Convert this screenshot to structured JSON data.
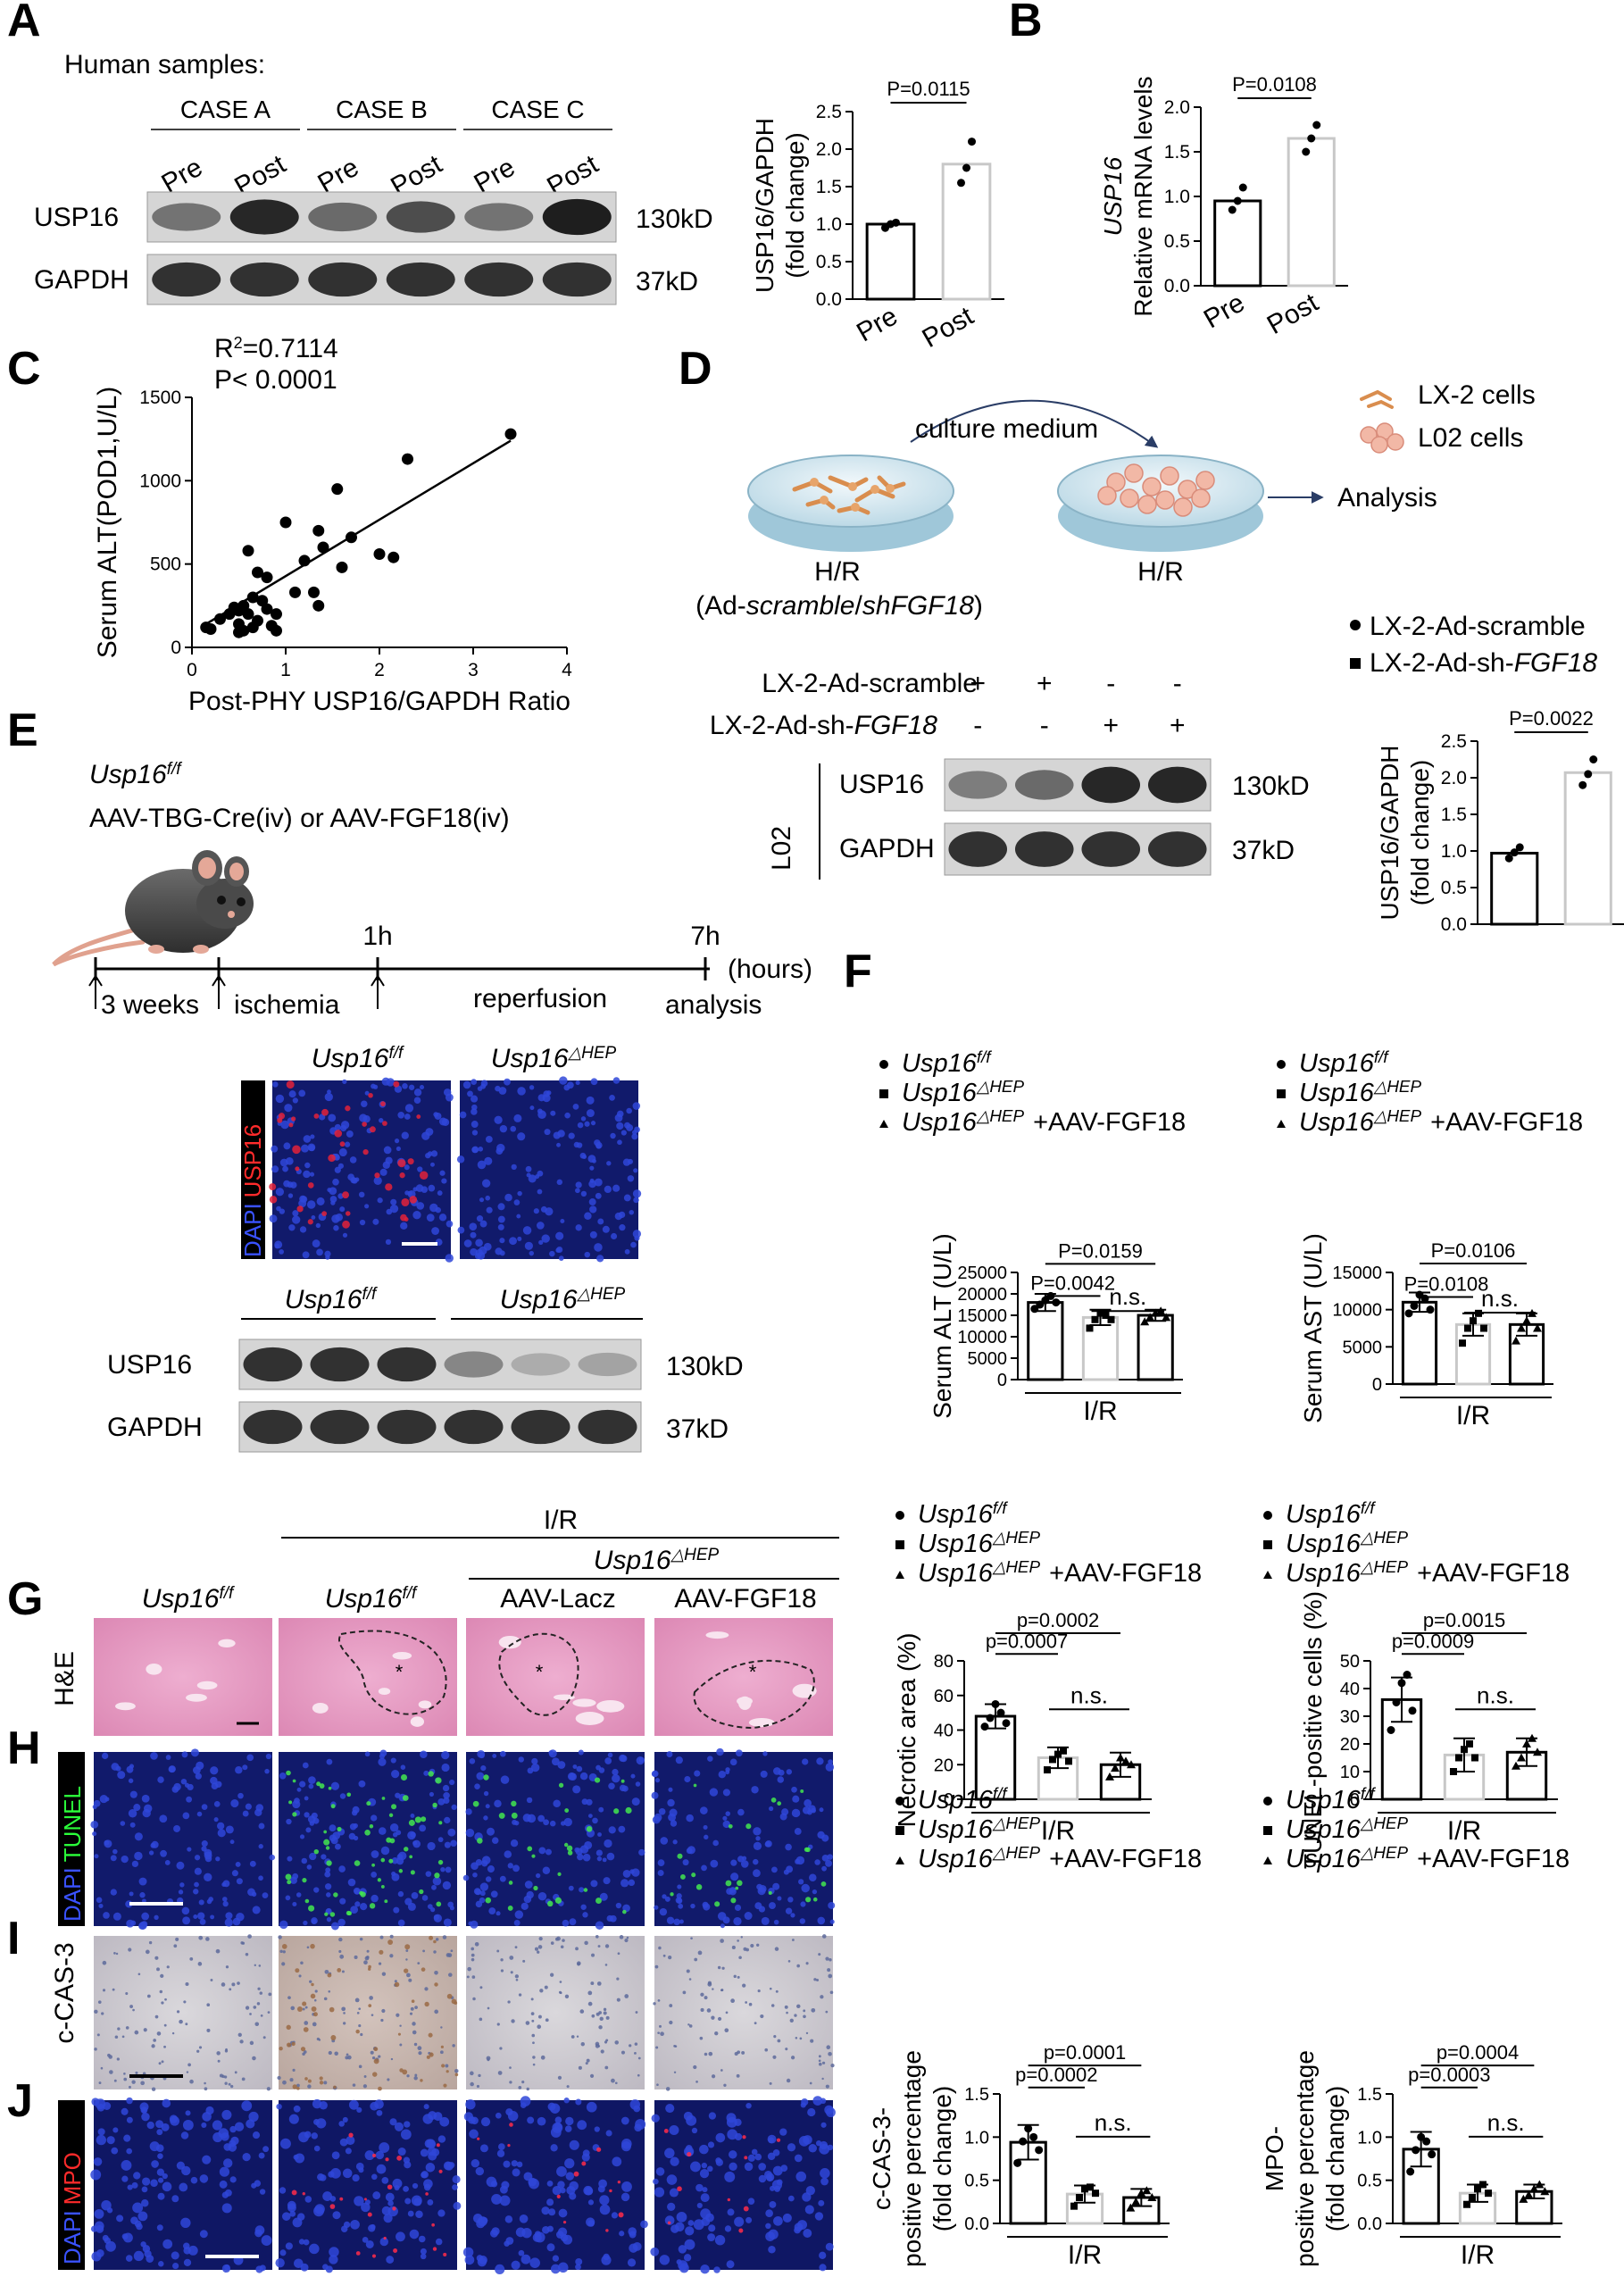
{
  "panels": {
    "A": {
      "letter": "A",
      "title": "Human samples:",
      "cases": [
        "CASE A",
        "CASE B",
        "CASE C"
      ],
      "lanes": [
        "Pre",
        "Post",
        "Pre",
        "Post",
        "Pre",
        "Post"
      ],
      "blots": [
        {
          "name": "USP16",
          "mw": "130kD",
          "intensity": [
            0.55,
            0.95,
            0.6,
            0.75,
            0.55,
            1.0
          ]
        },
        {
          "name": "GAPDH",
          "mw": "37kD",
          "intensity": [
            0.9,
            0.9,
            0.9,
            0.9,
            0.9,
            0.9
          ]
        }
      ]
    },
    "B": {
      "letter": "B"
    },
    "C": {
      "letter": "C",
      "r2_prefix": "R",
      "r2_sup": "2",
      "r2_value": "=0.7114",
      "p_text": "P< 0.0001"
    },
    "D": {
      "letter": "D",
      "culture_medium": "culture medium",
      "legend_lx2": "LX-2 cells",
      "legend_l02": "L02 cells",
      "analysis": "Analysis",
      "left_dish": "H/R",
      "left_dish_sub_prefix": "(Ad-",
      "left_dish_sub_scramble": "scramble",
      "left_dish_sub_slash": "/",
      "left_dish_sub_sh": "shFGF18",
      "left_dish_sub_suffix": ")",
      "right_dish": "H/R",
      "row1_label": "LX-2-Ad-scramble",
      "row1_signs": [
        "+",
        "+",
        "-",
        "-"
      ],
      "row2_label_prefix": "LX-2-Ad-sh-",
      "row2_label_it": "FGF18",
      "row2_signs": [
        "-",
        "-",
        "+",
        "+"
      ],
      "cell_line": "L02",
      "blots": [
        {
          "name": "USP16",
          "mw": "130kD",
          "intensity": [
            0.5,
            0.6,
            0.95,
            0.95
          ]
        },
        {
          "name": "GAPDH",
          "mw": "37kD",
          "intensity": [
            0.9,
            0.9,
            0.9,
            0.9
          ]
        }
      ],
      "legend1": "LX-2-Ad-scramble",
      "legend2_prefix": "LX-2-Ad-sh-",
      "legend2_it": "FGF18"
    },
    "E": {
      "letter": "E",
      "genotype": "Usp16",
      "genotype_sup": "f/f",
      "treatment": "AAV-TBG-Cre(iv) or AAV-FGF18(iv)",
      "t1": "1h",
      "t7": "7h",
      "hours": "(hours)",
      "weeks": "3 weeks",
      "ischemia": "ischemia",
      "reperfusion": "reperfusion",
      "analysis": "analysis",
      "if_group1": "Usp16",
      "if_group1_sup": "f/f",
      "if_group2": "Usp16",
      "if_group2_sup": "△HEP",
      "stain_dapi": "DAPI",
      "stain_usp16": "USP16",
      "wb_group1": "Usp16",
      "wb_group1_sup": "f/f",
      "wb_group2": "Usp16",
      "wb_group2_sup": "△HEP",
      "blots": [
        {
          "name": "USP16",
          "mw": "130kD",
          "intensity": [
            0.9,
            0.9,
            0.9,
            0.45,
            0.25,
            0.3
          ]
        },
        {
          "name": "GAPDH",
          "mw": "37kD",
          "intensity": [
            0.9,
            0.9,
            0.9,
            0.9,
            0.9,
            0.9
          ]
        }
      ]
    },
    "F": {
      "letter": "F"
    },
    "G": {
      "letter": "G",
      "ir": "I/R",
      "group_ctrl": "Usp16",
      "group_ctrl_sup": "f/f",
      "group_ir": "Usp16",
      "group_ir_sup": "f/f",
      "group_hep": "Usp16",
      "group_hep_sup": "△HEP",
      "aav_lacz": "AAV-Lacz",
      "aav_fgf18": "AAV-FGF18",
      "stain": "H&E"
    },
    "H": {
      "letter": "H",
      "stain_dapi": "DAPI",
      "stain_tunel": "TUNEL"
    },
    "I": {
      "letter": "I",
      "stain": "c-CAS-3"
    },
    "J": {
      "letter": "J",
      "stain_dapi": "DAPI",
      "stain_mpo": "MPO"
    }
  },
  "legends": {
    "ff": {
      "name": "Usp16",
      "sup": "f/f"
    },
    "hep": {
      "name": "Usp16",
      "sup": "△HEP"
    },
    "fgf": {
      "name": "Usp16",
      "sup": "△HEP",
      "suffix": "+AAV-FGF18"
    },
    "fgf_spaced": {
      "name": "Usp16",
      "sup": "△HEP",
      "suffix": "+AAV-FGF18"
    }
  },
  "chart_data": [
    {
      "id": "A_quant",
      "type": "bar",
      "categories": [
        "Pre",
        "Post"
      ],
      "values": [
        1.0,
        1.8
      ],
      "points": [
        [
          0.95,
          1.0,
          1.02
        ],
        [
          1.55,
          1.75,
          2.1
        ]
      ],
      "ylabel": "USP16/GAPDH",
      "ylabel2": "(fold change)",
      "ylim": [
        0,
        2.5
      ],
      "yticks": [
        "0.0",
        "0.5",
        "1.0",
        "1.5",
        "2.0",
        "2.5"
      ],
      "comparisons": [
        {
          "text": "P=0.0115"
        }
      ],
      "colors": [
        "#000000",
        "#c8c8c8"
      ]
    },
    {
      "id": "B_quant",
      "type": "bar",
      "categories": [
        "Pre",
        "Post"
      ],
      "values": [
        0.95,
        1.65
      ],
      "points": [
        [
          0.85,
          0.95,
          1.1
        ],
        [
          1.5,
          1.65,
          1.8
        ]
      ],
      "ylabel": "USP16",
      "ylabel2": "Relative mRNA levels",
      "ylim": [
        0,
        2.0
      ],
      "yticks": [
        "0.0",
        "0.5",
        "1.0",
        "1.5",
        "2.0"
      ],
      "comparisons": [
        {
          "text": "P=0.0108"
        }
      ],
      "colors": [
        "#000000",
        "#c8c8c8"
      ]
    },
    {
      "id": "C_scatter",
      "type": "scatter",
      "x": [
        0.15,
        0.2,
        0.3,
        0.4,
        0.45,
        0.5,
        0.55,
        0.6,
        0.5,
        0.5,
        0.7,
        0.65,
        0.8,
        0.6,
        0.7,
        0.75,
        0.85,
        0.9,
        1.0,
        1.1,
        0.55,
        0.65,
        0.8,
        0.9,
        1.2,
        1.3,
        1.35,
        1.4,
        1.35,
        1.55,
        1.6,
        1.7,
        2.0,
        2.15,
        2.3,
        3.4
      ],
      "y": [
        120,
        110,
        170,
        200,
        240,
        220,
        250,
        200,
        140,
        90,
        160,
        300,
        230,
        580,
        450,
        280,
        130,
        200,
        750,
        330,
        100,
        120,
        420,
        100,
        520,
        330,
        250,
        600,
        700,
        950,
        480,
        660,
        560,
        540,
        1130,
        1280
      ],
      "fit": [
        [
          0.15,
          140
        ],
        [
          3.4,
          1240
        ]
      ],
      "xlabel": "Post-PHY USP16/GAPDH Ratio",
      "ylabel": "Serum ALT(POD1,U/L)",
      "xlim": [
        0,
        4
      ],
      "ylim": [
        0,
        1500
      ],
      "xticks": [
        "0",
        "1",
        "2",
        "3",
        "4"
      ],
      "yticks": [
        "0",
        "500",
        "1000",
        "1500"
      ]
    },
    {
      "id": "D_quant",
      "type": "bar",
      "categories": [
        "LX-2-Ad-scramble",
        "LX-2-Ad-sh-FGF18"
      ],
      "values": [
        0.97,
        2.07
      ],
      "points": [
        [
          0.9,
          0.98,
          1.05
        ],
        [
          1.9,
          2.05,
          2.25
        ]
      ],
      "ylabel": "USP16/GAPDH",
      "ylabel2": "(fold change)",
      "ylim": [
        0,
        2.5
      ],
      "yticks": [
        "0.0",
        "0.5",
        "1.0",
        "1.5",
        "2.0",
        "2.5"
      ],
      "comparisons": [
        {
          "text": "P=0.0022"
        }
      ],
      "colors": [
        "#000000",
        "#c8c8c8"
      ]
    },
    {
      "id": "F_alt",
      "type": "bar",
      "values": [
        18000,
        14500,
        15000
      ],
      "err": [
        2000,
        1800,
        1300
      ],
      "points": [
        [
          16500,
          17500,
          18500,
          19500,
          18000
        ],
        [
          12000,
          14000,
          15500,
          15000,
          14000
        ],
        [
          13500,
          14500,
          15500,
          16000,
          14500
        ]
      ],
      "ylabel": "Serum ALT (U/L)",
      "xlabel": "I/R",
      "ylim": [
        0,
        25000
      ],
      "yticks": [
        "0",
        "5000",
        "10000",
        "15000",
        "20000",
        "25000"
      ],
      "comparisons": [
        {
          "text": "P=0.0042"
        },
        {
          "text": "P=0.0159"
        },
        {
          "text": "n.s."
        }
      ],
      "colors": [
        "#000000",
        "#c8c8c8",
        "#000000"
      ]
    },
    {
      "id": "F_ast",
      "type": "bar",
      "values": [
        11000,
        8000,
        8000
      ],
      "err": [
        1300,
        1500,
        1500
      ],
      "points": [
        [
          9500,
          10500,
          12000,
          11500,
          10000
        ],
        [
          5500,
          7500,
          8500,
          9500,
          7500
        ],
        [
          5800,
          7500,
          8500,
          9500,
          7500
        ]
      ],
      "ylabel": "Serum AST (U/L)",
      "xlabel": "I/R",
      "ylim": [
        0,
        15000
      ],
      "yticks": [
        "0",
        "5000",
        "10000",
        "15000"
      ],
      "comparisons": [
        {
          "text": "P=0.0108"
        },
        {
          "text": "P=0.0106"
        },
        {
          "text": "n.s."
        }
      ],
      "colors": [
        "#000000",
        "#c8c8c8",
        "#000000"
      ]
    },
    {
      "id": "G_necrotic",
      "type": "bar",
      "values": [
        48,
        24,
        20
      ],
      "err": [
        7,
        6,
        7
      ],
      "points": [
        [
          42,
          47,
          55,
          50,
          44
        ],
        [
          17,
          23,
          26,
          28,
          22
        ],
        [
          13,
          18,
          24,
          22,
          20
        ]
      ],
      "ylabel": "Necrotic area (%)",
      "xlabel": "I/R",
      "ylim": [
        0,
        80
      ],
      "yticks": [
        "0",
        "20",
        "40",
        "60",
        "80"
      ],
      "comparisons": [
        {
          "text": "p=0.0007"
        },
        {
          "text": "p=0.0002"
        },
        {
          "text": "n.s."
        }
      ],
      "colors": [
        "#000000",
        "#c8c8c8",
        "#000000"
      ]
    },
    {
      "id": "H_tunel",
      "type": "bar",
      "values": [
        36,
        16,
        17
      ],
      "err": [
        8,
        6,
        5
      ],
      "points": [
        [
          25,
          35,
          42,
          45,
          32
        ],
        [
          10,
          15,
          18,
          20,
          15
        ],
        [
          12,
          15,
          20,
          22,
          17
        ]
      ],
      "ylabel": "TUNEL-positive cells (%)",
      "xlabel": "I/R",
      "ylim": [
        0,
        50
      ],
      "yticks": [
        "0",
        "10",
        "20",
        "30",
        "40",
        "50"
      ],
      "comparisons": [
        {
          "text": "p=0.0009"
        },
        {
          "text": "p=0.0015"
        },
        {
          "text": "n.s."
        }
      ],
      "colors": [
        "#000000",
        "#c8c8c8",
        "#000000"
      ]
    },
    {
      "id": "I_cas3",
      "type": "bar",
      "values": [
        0.94,
        0.34,
        0.3
      ],
      "err": [
        0.2,
        0.1,
        0.1
      ],
      "points": [
        [
          0.7,
          0.95,
          1.1,
          1.0,
          0.85
        ],
        [
          0.2,
          0.3,
          0.4,
          0.42,
          0.35
        ],
        [
          0.18,
          0.25,
          0.35,
          0.38,
          0.3
        ]
      ],
      "ylabel": "c-CAS-3-",
      "ylabel2": "positive percentage",
      "ylabel3": "(fold change)",
      "xlabel": "I/R",
      "ylim": [
        0,
        1.5
      ],
      "yticks": [
        "0.0",
        "0.5",
        "1.0",
        "1.5"
      ],
      "comparisons": [
        {
          "text": "p=0.0002"
        },
        {
          "text": "p=0.0001"
        },
        {
          "text": "n.s."
        }
      ],
      "colors": [
        "#000000",
        "#c8c8c8",
        "#000000"
      ]
    },
    {
      "id": "J_mpo",
      "type": "bar",
      "values": [
        0.86,
        0.35,
        0.37
      ],
      "err": [
        0.2,
        0.1,
        0.08
      ],
      "points": [
        [
          0.6,
          0.85,
          1.0,
          0.95,
          0.8
        ],
        [
          0.22,
          0.3,
          0.4,
          0.45,
          0.35
        ],
        [
          0.28,
          0.33,
          0.4,
          0.45,
          0.37
        ]
      ],
      "ylabel": "MPO-",
      "ylabel2": "positive percentage",
      "ylabel3": "(fold change)",
      "xlabel": "I/R",
      "ylim": [
        0,
        1.5
      ],
      "yticks": [
        "0.0",
        "0.5",
        "1.0",
        "1.5"
      ],
      "comparisons": [
        {
          "text": "p=0.0003"
        },
        {
          "text": "p=0.0004"
        },
        {
          "text": "n.s."
        }
      ],
      "colors": [
        "#000000",
        "#c8c8c8",
        "#000000"
      ]
    }
  ]
}
